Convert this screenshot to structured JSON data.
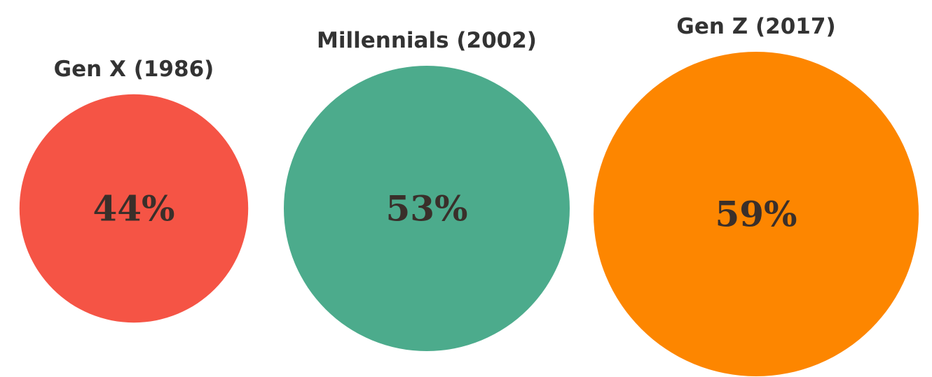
{
  "chart_data": {
    "type": "bubble",
    "categories": [
      "Gen X (1986)",
      "Millennials (2002)",
      "Gen Z (2017)"
    ],
    "values": [
      44,
      53,
      59
    ],
    "value_labels": [
      "44%",
      "53%",
      "59%"
    ],
    "colors": [
      "#f55445",
      "#4cab8c",
      "#fd8600"
    ],
    "legend": "none",
    "grid": false
  }
}
